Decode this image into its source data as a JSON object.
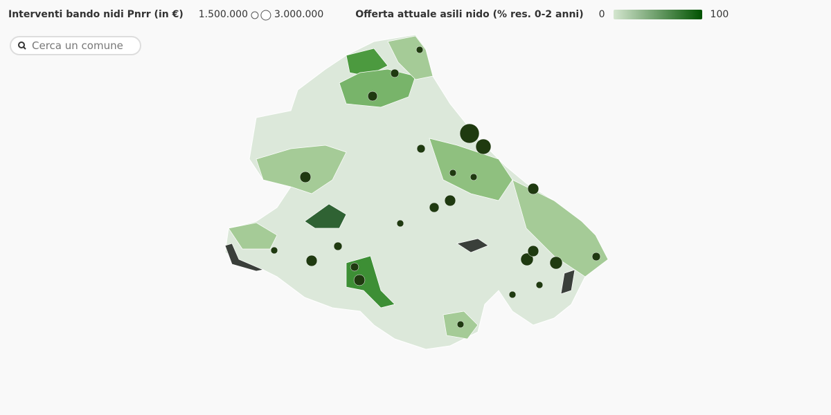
{
  "legend": {
    "size": {
      "title": "Interventi bando nidi Pnrr (in €)",
      "min": {
        "value": 1500000,
        "label": "1.500.000"
      },
      "max": {
        "value": 3000000,
        "label": "3.000.000"
      }
    },
    "color": {
      "title": "Offerta attuale asili nido (% res. 0-2 anni)",
      "min": 0,
      "max": 100,
      "colors": [
        "#d4e6cf",
        "#005200"
      ]
    }
  },
  "search": {
    "placeholder": "Cerca un comune"
  },
  "bubble_color": "#1f3a10",
  "bubbles": [
    12000000,
    7400000,
    3900000,
    3900000,
    3900000,
    5000000,
    5000000,
    3900000,
    3900000,
    3900000,
    3000000,
    2200000,
    3000000,
    2200000,
    2200000,
    1500000,
    2200000,
    2200000,
    1500000,
    1500000,
    1500000,
    1500000,
    1500000,
    1500000,
    1500000
  ]
}
